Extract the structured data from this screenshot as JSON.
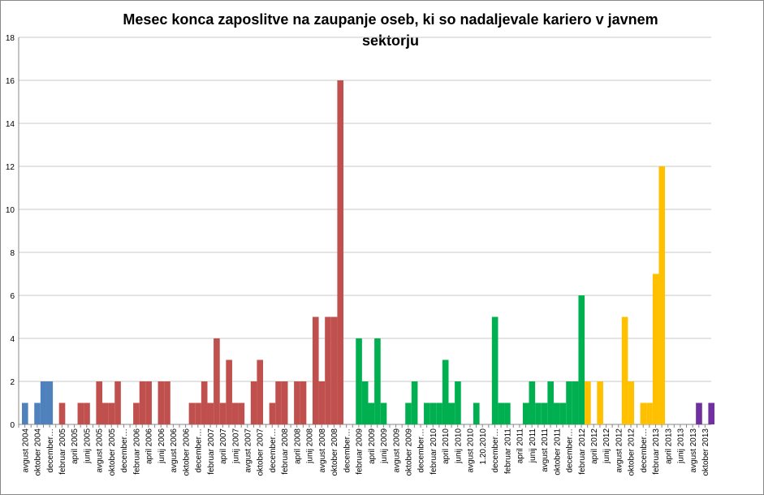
{
  "chart_data": {
    "type": "bar",
    "title": "Mesec konca zaposlitve na zaupanje oseb, ki so nadaljevale kariero v javnem sektorju",
    "categories": [
      "avgust 2004",
      null,
      "oktober 2004",
      null,
      "december…",
      null,
      "februar 2005",
      null,
      "april 2005",
      null,
      "junij 2005",
      null,
      "avgust 2005",
      null,
      "oktober 2005",
      null,
      "december…",
      null,
      "februar 2006",
      null,
      "april 2006",
      null,
      "junij 2006",
      null,
      "avgust 2006",
      null,
      "oktober 2006",
      null,
      "december…",
      null,
      "februar 2007",
      null,
      "april 2007",
      null,
      "junij 2007",
      null,
      "avgust 2007",
      null,
      "oktober 2007",
      null,
      "december…",
      null,
      "februar 2008",
      null,
      "april 2008",
      null,
      "junij 2008",
      null,
      "avgust 2008",
      null,
      "oktober 2008",
      null,
      "december…",
      null,
      "februar 2009",
      null,
      "april 2009",
      null,
      "junij 2009",
      null,
      "avgust 2009",
      null,
      "oktober 2009",
      null,
      "december…",
      null,
      "februar 2010",
      null,
      "april 2010",
      null,
      "junij 2010",
      null,
      "avgust 2010",
      null,
      "1.20.2010",
      null,
      "december…",
      null,
      "februar 2011",
      null,
      "april 2011",
      null,
      "junij 2011",
      null,
      "avgust 2011",
      null,
      "oktober 2011",
      null,
      "december…",
      null,
      "februar 2012",
      null,
      "april 2012",
      null,
      "junij 2012",
      null,
      "avgust 2012",
      null,
      "oktober 2012",
      null,
      "december…",
      null,
      "februar 2013",
      null,
      "april 2013",
      null,
      "junij 2013",
      null,
      "avgust 2013",
      null,
      "oktober 2013",
      null
    ],
    "values": [
      1,
      0,
      1,
      2,
      2,
      0,
      1,
      0,
      0,
      1,
      1,
      0,
      2,
      1,
      1,
      2,
      0,
      0,
      1,
      2,
      2,
      0,
      2,
      2,
      0,
      0,
      0,
      1,
      1,
      2,
      1,
      4,
      1,
      3,
      1,
      1,
      0,
      2,
      3,
      0,
      1,
      2,
      2,
      0,
      2,
      2,
      0,
      5,
      2,
      5,
      5,
      16,
      0,
      0,
      4,
      2,
      1,
      4,
      1,
      0,
      0,
      0,
      1,
      2,
      0,
      1,
      1,
      1,
      3,
      1,
      2,
      0,
      0,
      1,
      0,
      0,
      5,
      1,
      1,
      0,
      0,
      1,
      2,
      1,
      1,
      2,
      1,
      1,
      2,
      2,
      6,
      2,
      0,
      2,
      0,
      0,
      0,
      5,
      2,
      0,
      1,
      1,
      7,
      12,
      0,
      0,
      0,
      0,
      0,
      1,
      0,
      1
    ],
    "colors": [
      "#4f81bd",
      "#4f81bd",
      "#4f81bd",
      "#4f81bd",
      "#4f81bd",
      "#c0504d",
      "#c0504d",
      "#c0504d",
      "#c0504d",
      "#c0504d",
      "#c0504d",
      "#c0504d",
      "#c0504d",
      "#c0504d",
      "#c0504d",
      "#c0504d",
      "#c0504d",
      "#c0504d",
      "#c0504d",
      "#c0504d",
      "#c0504d",
      "#c0504d",
      "#c0504d",
      "#c0504d",
      "#c0504d",
      "#c0504d",
      "#c0504d",
      "#c0504d",
      "#c0504d",
      "#c0504d",
      "#c0504d",
      "#c0504d",
      "#c0504d",
      "#c0504d",
      "#c0504d",
      "#c0504d",
      "#c0504d",
      "#c0504d",
      "#c0504d",
      "#c0504d",
      "#c0504d",
      "#c0504d",
      "#c0504d",
      "#c0504d",
      "#c0504d",
      "#c0504d",
      "#c0504d",
      "#c0504d",
      "#c0504d",
      "#c0504d",
      "#c0504d",
      "#c0504d",
      "#c0504d",
      "#00b050",
      "#00b050",
      "#00b050",
      "#00b050",
      "#00b050",
      "#00b050",
      "#00b050",
      "#00b050",
      "#00b050",
      "#00b050",
      "#00b050",
      "#00b050",
      "#00b050",
      "#00b050",
      "#00b050",
      "#00b050",
      "#00b050",
      "#00b050",
      "#00b050",
      "#00b050",
      "#00b050",
      "#00b050",
      "#00b050",
      "#00b050",
      "#00b050",
      "#00b050",
      "#00b050",
      "#00b050",
      "#00b050",
      "#00b050",
      "#00b050",
      "#00b050",
      "#00b050",
      "#00b050",
      "#00b050",
      "#00b050",
      "#00b050",
      "#00b050",
      "#ffc000",
      "#ffc000",
      "#ffc000",
      "#ffc000",
      "#ffc000",
      "#ffc000",
      "#ffc000",
      "#ffc000",
      "#ffc000",
      "#ffc000",
      "#ffc000",
      "#ffc000",
      "#ffc000",
      "#7030a0",
      "#7030a0",
      "#7030a0",
      "#7030a0",
      "#7030a0",
      "#7030a0",
      "#7030a0",
      "#7030a0"
    ],
    "ylim": [
      0,
      18
    ],
    "yticks": [
      0,
      2,
      4,
      6,
      8,
      10,
      12,
      14,
      16,
      18
    ],
    "grid": true
  }
}
